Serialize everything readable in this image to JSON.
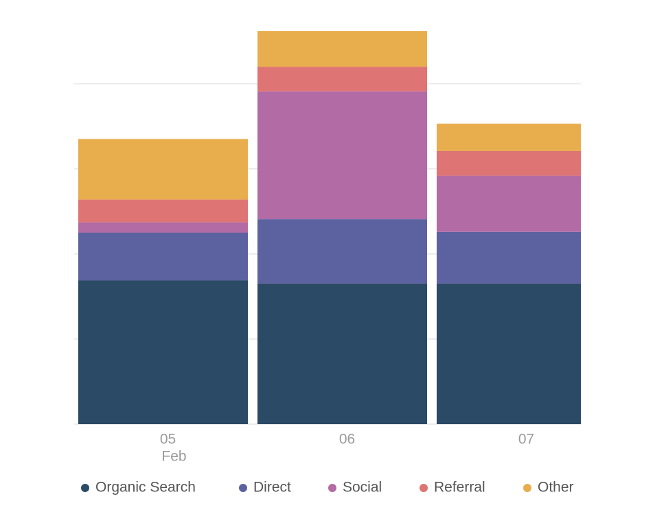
{
  "chart_data": {
    "type": "stacked-bar",
    "categories": [
      "05",
      "06",
      "07"
    ],
    "x_sublabel": "Feb",
    "series": [
      {
        "name": "Organic Search",
        "color": "#2a4a66",
        "values": [
          1.69,
          1.65,
          1.65
        ]
      },
      {
        "name": "Direct",
        "color": "#5c62a0",
        "values": [
          0.56,
          0.76,
          0.61
        ]
      },
      {
        "name": "Social",
        "color": "#b36ba5",
        "values": [
          0.12,
          1.5,
          0.66
        ]
      },
      {
        "name": "Referral",
        "color": "#de7474",
        "values": [
          0.27,
          0.29,
          0.29
        ]
      },
      {
        "name": "Other",
        "color": "#e8ad4c",
        "values": [
          0.71,
          0.42,
          0.32
        ]
      }
    ],
    "ylim": [
      0,
      5
    ],
    "yticks": [
      0,
      1,
      2,
      3,
      4
    ],
    "grid": true,
    "legend": "bottom"
  }
}
